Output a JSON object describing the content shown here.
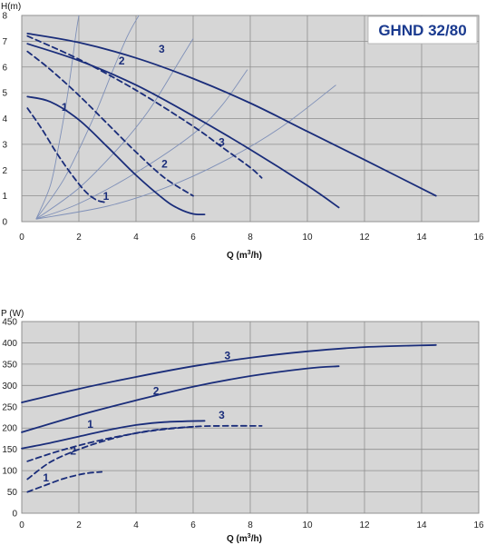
{
  "colors": {
    "plot_bg": "#d6d6d6",
    "grid": "#8e8e8e",
    "curve": "#1a2d7a",
    "system": "#7f90b8",
    "title_text": "#1a3a8f",
    "title_bg": "#ffffff"
  },
  "chart_data": [
    {
      "type": "line",
      "title": "GHND 32/80",
      "xlabel": "Q (m³/h)",
      "xlabel_prefix": "Q (m",
      "xlabel_sup": "3",
      "xlabel_suffix": "/h)",
      "ylabel": "H(m)",
      "xlim": [
        0,
        16
      ],
      "ylim": [
        0,
        8
      ],
      "xticks": [
        "0",
        "2",
        "4",
        "6",
        "8",
        "10",
        "12",
        "14",
        "16"
      ],
      "yticks": [
        "0",
        "1",
        "2",
        "3",
        "4",
        "5",
        "6",
        "7",
        "8"
      ],
      "grid": true,
      "series": [
        {
          "name": "1",
          "style": "solid",
          "x": [
            0.2,
            1.0,
            2.0,
            3.0,
            4.0,
            5.0,
            5.5,
            6.0,
            6.4
          ],
          "y": [
            4.85,
            4.65,
            3.95,
            2.9,
            1.8,
            0.85,
            0.5,
            0.3,
            0.28
          ]
        },
        {
          "name": "1",
          "style": "dashed",
          "x": [
            0.2,
            0.7,
            1.2,
            1.7,
            2.2,
            2.6,
            2.9
          ],
          "y": [
            4.4,
            3.6,
            2.7,
            1.9,
            1.2,
            0.85,
            0.75
          ]
        },
        {
          "name": "2",
          "style": "solid",
          "x": [
            0.2,
            2.0,
            4.0,
            6.0,
            8.0,
            10.0,
            11.1
          ],
          "y": [
            6.9,
            6.25,
            5.3,
            4.1,
            2.8,
            1.4,
            0.55
          ]
        },
        {
          "name": "2",
          "style": "dashed",
          "x": [
            0.2,
            1.0,
            2.0,
            3.0,
            4.0,
            5.0,
            6.0
          ],
          "y": [
            6.6,
            5.9,
            4.9,
            3.8,
            2.7,
            1.7,
            1.0
          ]
        },
        {
          "name": "3",
          "style": "solid",
          "x": [
            0.2,
            2.0,
            4.0,
            6.0,
            8.0,
            10.0,
            12.0,
            14.5
          ],
          "y": [
            7.3,
            6.95,
            6.35,
            5.55,
            4.6,
            3.5,
            2.4,
            1.0
          ]
        },
        {
          "name": "3",
          "style": "dashed",
          "x": [
            0.2,
            2.0,
            4.0,
            6.0,
            7.0,
            8.0,
            8.4
          ],
          "y": [
            7.2,
            6.3,
            5.1,
            3.7,
            2.9,
            2.1,
            1.7
          ]
        }
      ],
      "system_curves": [
        {
          "x": [
            0.5,
            1.0,
            1.3,
            1.6,
            1.9,
            2.0
          ],
          "y": [
            0.1,
            1.4,
            3.0,
            4.9,
            7.3,
            8.0
          ]
        },
        {
          "x": [
            0.5,
            1.5,
            2.5,
            3.2,
            3.7,
            4.1
          ],
          "y": [
            0.1,
            1.7,
            4.0,
            5.9,
            7.2,
            8.0
          ]
        },
        {
          "x": [
            0.5,
            2.0,
            3.5,
            4.5,
            5.5,
            6.0
          ],
          "y": [
            0.1,
            1.3,
            3.0,
            4.4,
            6.2,
            7.1
          ]
        },
        {
          "x": [
            0.5,
            2.0,
            4.0,
            6.0,
            7.0,
            7.9
          ],
          "y": [
            0.1,
            0.7,
            1.9,
            3.4,
            4.5,
            5.9
          ]
        },
        {
          "x": [
            0.5,
            3.0,
            5.0,
            7.0,
            9.0,
            11.0
          ],
          "y": [
            0.1,
            0.6,
            1.3,
            2.3,
            3.6,
            5.3
          ]
        }
      ],
      "curve_labels": [
        {
          "text": "1",
          "x": 1.5,
          "y": 4.3
        },
        {
          "text": "1",
          "x": 2.95,
          "y": 0.85
        },
        {
          "text": "2",
          "x": 3.5,
          "y": 6.1
        },
        {
          "text": "2",
          "x": 5.0,
          "y": 2.1
        },
        {
          "text": "3",
          "x": 4.9,
          "y": 6.55
        },
        {
          "text": "3",
          "x": 7.0,
          "y": 2.95
        }
      ]
    },
    {
      "type": "line",
      "title": "",
      "xlabel": "Q (m³/h)",
      "xlabel_prefix": "Q (m",
      "xlabel_sup": "3",
      "xlabel_suffix": "/h)",
      "ylabel": "P (W)",
      "xlim": [
        0,
        16
      ],
      "ylim": [
        0,
        450
      ],
      "xticks": [
        "0",
        "2",
        "4",
        "6",
        "8",
        "10",
        "12",
        "14",
        "16"
      ],
      "yticks": [
        "0",
        "50",
        "100",
        "150",
        "200",
        "250",
        "300",
        "350",
        "400",
        "450"
      ],
      "grid": true,
      "series": [
        {
          "name": "1",
          "style": "solid",
          "x": [
            0.0,
            1.0,
            2.0,
            3.0,
            4.0,
            5.0,
            6.4
          ],
          "y": [
            152,
            165,
            180,
            195,
            207,
            214,
            217
          ]
        },
        {
          "name": "1",
          "style": "dashed",
          "x": [
            0.2,
            0.8,
            1.5,
            2.2,
            2.8
          ],
          "y": [
            50,
            65,
            82,
            93,
            97
          ]
        },
        {
          "name": "2",
          "style": "solid",
          "x": [
            0.0,
            2.0,
            4.0,
            6.0,
            8.0,
            10.0,
            11.1
          ],
          "y": [
            190,
            230,
            265,
            297,
            322,
            340,
            345
          ]
        },
        {
          "name": "2",
          "style": "dashed",
          "x": [
            0.2,
            1.0,
            2.0,
            3.0,
            4.0,
            5.0,
            6.0
          ],
          "y": [
            80,
            120,
            150,
            172,
            188,
            198,
            203
          ]
        },
        {
          "name": "3",
          "style": "solid",
          "x": [
            0.0,
            2.0,
            4.0,
            6.0,
            8.0,
            10.0,
            12.0,
            14.5
          ],
          "y": [
            260,
            292,
            320,
            345,
            365,
            380,
            390,
            395
          ]
        },
        {
          "name": "3",
          "style": "dashed",
          "x": [
            0.2,
            1.5,
            3.0,
            4.5,
            6.0,
            7.0,
            8.4
          ],
          "y": [
            122,
            150,
            175,
            193,
            203,
            205,
            205
          ]
        }
      ],
      "curve_labels": [
        {
          "text": "1",
          "x": 2.4,
          "y": 200
        },
        {
          "text": "1",
          "x": 0.85,
          "y": 75
        },
        {
          "text": "2",
          "x": 4.7,
          "y": 278
        },
        {
          "text": "2",
          "x": 1.8,
          "y": 138
        },
        {
          "text": "3",
          "x": 7.2,
          "y": 362
        },
        {
          "text": "3",
          "x": 7.0,
          "y": 222
        }
      ]
    }
  ]
}
